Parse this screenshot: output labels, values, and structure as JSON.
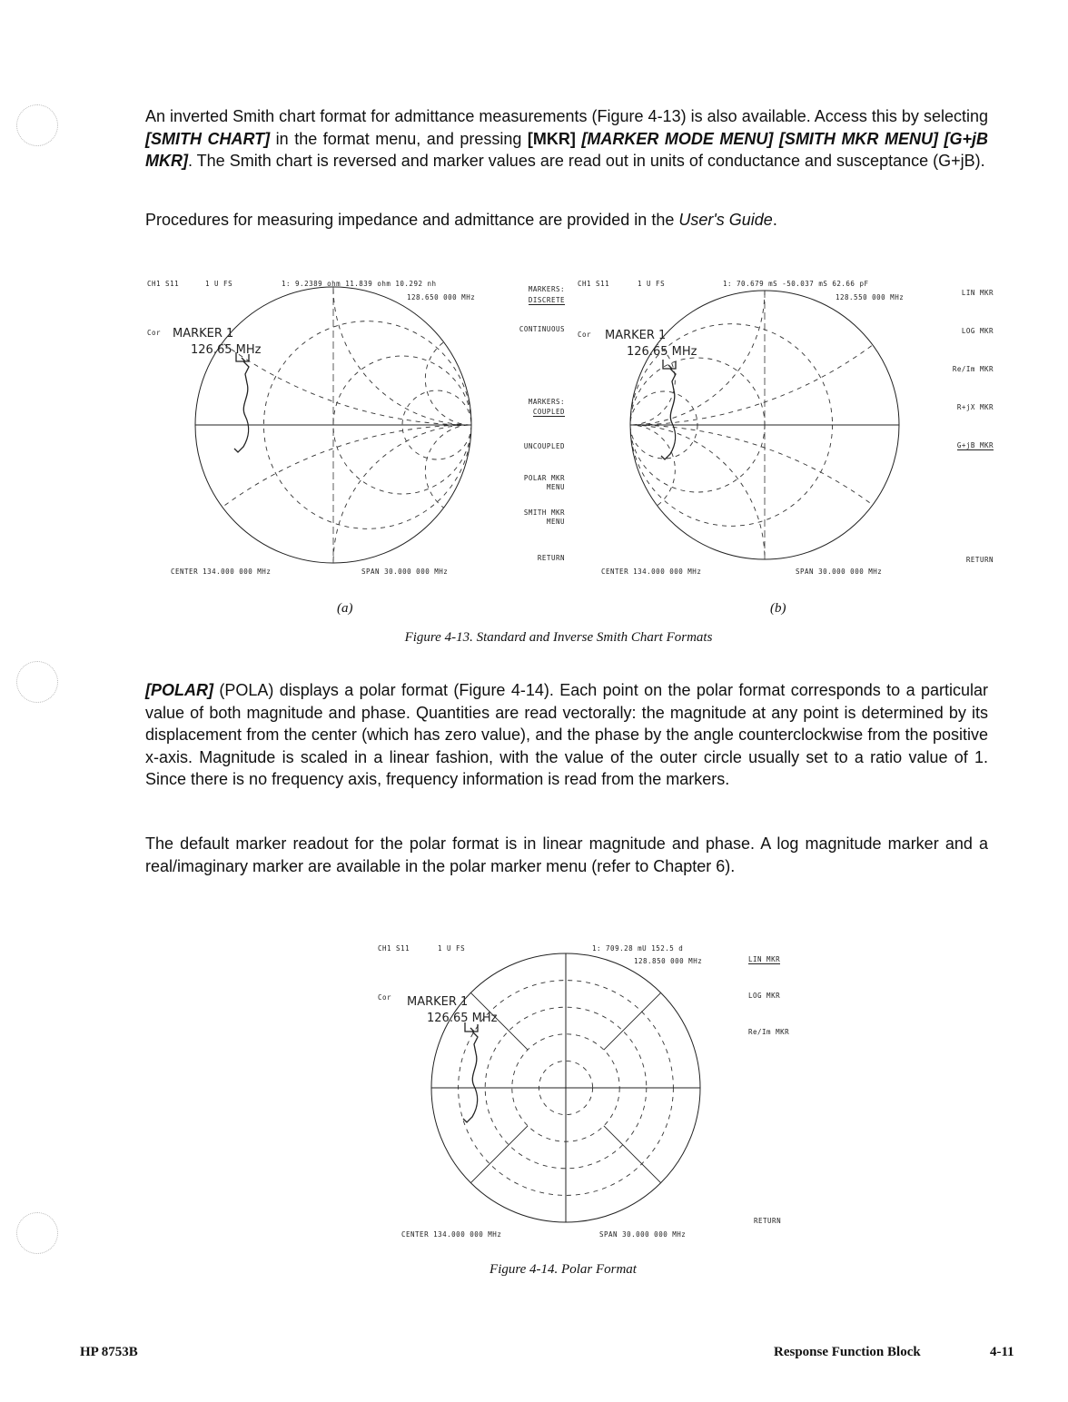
{
  "paragraphs": {
    "p1": {
      "t1": "An inverted Smith chart format for admittance measurements (Figure 4-13) is also available. Access this by selecting ",
      "k1": "[SMITH CHART]",
      "t2": " in the format menu, and pressing ",
      "k2": "[MKR]",
      "t3": " ",
      "k3": "[MARKER MODE MENU]",
      "t4": " ",
      "k4": "[SMITH MKR MENU]",
      "t5": " ",
      "k5": "[G+jB MKR]",
      "t6": ". The Smith chart is reversed and marker values are read out in units of conductance and susceptance (G+jB)."
    },
    "p2": {
      "t1": "Procedures for measuring impedance and admittance are provided in the ",
      "em": "User's Guide",
      "t2": "."
    },
    "p3": {
      "k1": "[POLAR]",
      "t1": " (POLA) displays a polar format (Figure 4-14). Each point on the polar format corresponds to a particular value of both magnitude and phase. Quantities are read vectorally: the magnitude at any point is determined by its displacement from the center (which has zero value), and the phase by the angle counterclockwise from the positive x-axis. Magnitude is scaled in a linear fashion, with the value of the outer circle usually set to a ratio value of 1. Since there is no frequency axis, frequency information is read from the markers."
    },
    "p4": {
      "t1": "The default marker readout for the polar format is in linear magnitude and phase. A log magnitude marker and a real/imaginary marker are available in the polar marker menu (refer to Chapter 6)."
    }
  },
  "fig13a": {
    "channel": "CH1 S11",
    "scale": "1 U FS",
    "marker_readout": "1: 9.2389 ohm  11.839 ohm 10.292 nh",
    "marker_freq": "128.650 000 MHz",
    "cor": "Cor",
    "marker_label": "MARKER 1",
    "marker_label_freq": "126.65 MHz",
    "center": "CENTER  134.000 000 MHz",
    "span": "SPAN   30.000 000 MHz",
    "softkeys": [
      "MARKERS:",
      "DISCRETE",
      "CONTINUOUS",
      "MARKERS:",
      "COUPLED",
      "UNCOUPLED",
      "POLAR MKR",
      "MENU",
      "SMITH MKR",
      "MENU",
      "RETURN"
    ],
    "label": "(a)"
  },
  "fig13b": {
    "channel": "CH1 S11",
    "scale": "1 U FS",
    "marker_readout": "1: 70.679 mS  -50.037 mS  62.66 pF",
    "marker_freq": "128.550 000 MHz",
    "cor": "Cor",
    "marker_label": "MARKER 1",
    "marker_label_freq": "126.65 MHz",
    "center": "CENTER  134.000 000 MHz",
    "span": "SPAN   30.000 000 MHz",
    "softkeys": [
      "LIN MKR",
      "LOG MKR",
      "Re/Im MKR",
      "R+jX MKR",
      "G+jB MKR",
      "RETURN"
    ],
    "label": "(b)"
  },
  "fig13_caption": "Figure 4-13.   Standard and Inverse Smith Chart Formats",
  "fig14": {
    "channel": "CH1 S11",
    "scale": "1 U FS",
    "marker_readout": "1: 709.28 mU   152.5 d",
    "marker_freq": "128.850 000 MHz",
    "cor": "Cor",
    "marker_label": "MARKER 1",
    "marker_label_freq": "126.65 MHz",
    "center": "CENTER  134.000 000 MHz",
    "span": "SPAN   30.000 000 MHz",
    "softkeys": [
      "LIN MKR",
      "LOG MKR",
      "Re/Im MKR",
      "RETURN"
    ]
  },
  "fig14_caption": "Figure 4-14.   Polar Format",
  "footer": {
    "left": "HP 8753B",
    "section": "Response Function Block",
    "page": "4-11"
  }
}
